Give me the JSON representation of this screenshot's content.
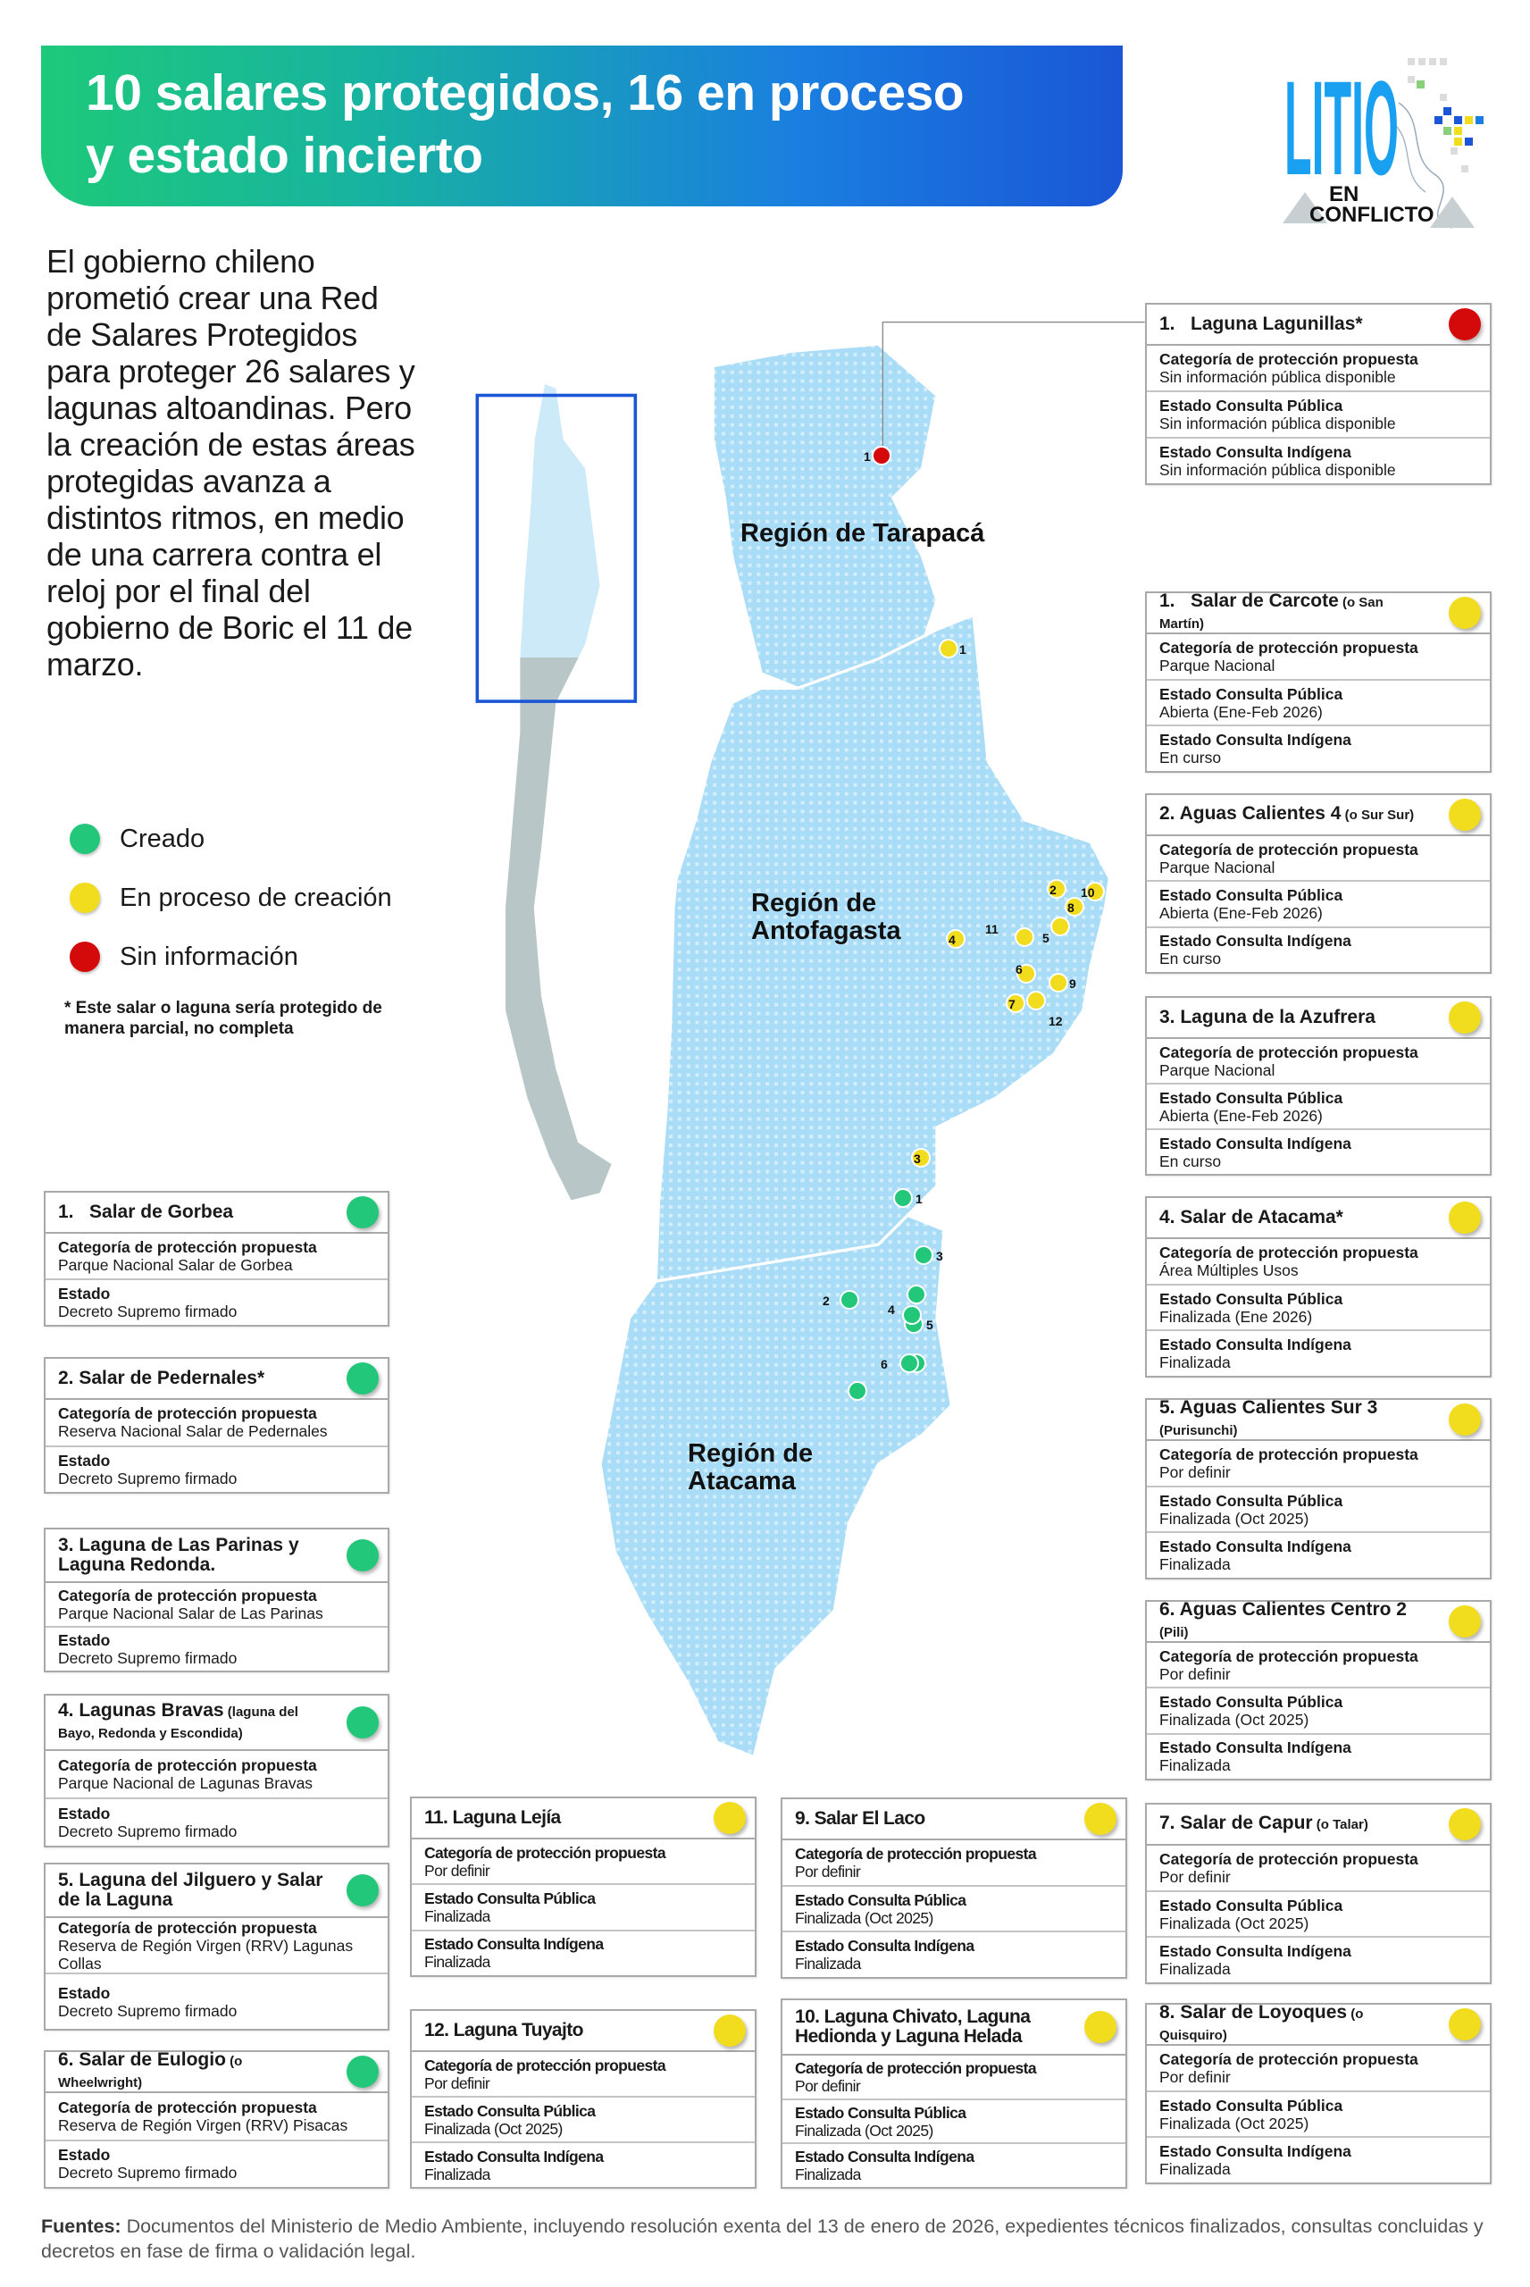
{
  "header": {
    "title_line1": "10 salares protegidos, 16 en proceso",
    "title_line2": "y estado incierto"
  },
  "logo": {
    "text_main": "LITIO",
    "text_sub1": "EN",
    "text_sub2": "CONFLICTO"
  },
  "intro": "El gobierno chileno prometió crear una Red de Salares Protegidos para proteger 26 salares y lagunas altoandinas. Pero la creación de estas áreas protegidas avanza a distintos ritmos, en medio de una carrera contra el reloj por el final del gobierno de Boric el 11 de marzo.",
  "colors": {
    "created": "#22c77a",
    "in_process": "#f2dc1e",
    "no_info": "#d40a0a",
    "map_fill": "#a9dcf6",
    "chile_box": "#1a56d6"
  },
  "legend": [
    {
      "label": "Creado",
      "status": "created"
    },
    {
      "label": "En proceso de creación",
      "status": "in_process"
    },
    {
      "label": "Sin información",
      "status": "no_info"
    }
  ],
  "note": "* Este salar o laguna sería protegido de manera parcial, no completa",
  "map": {
    "regions": {
      "tarapaca": "Región de Tarapacá",
      "antofagasta": "Región de Antofagasta",
      "atacama": "Región de Atacama"
    },
    "markers": {
      "tarapaca": [
        {
          "label": "1",
          "status": "no_info"
        }
      ],
      "antofagasta": [
        {
          "label": "1"
        },
        {
          "label": "2"
        },
        {
          "label": "3"
        },
        {
          "label": "4"
        },
        {
          "label": "5"
        },
        {
          "label": "6"
        },
        {
          "label": "7"
        },
        {
          "label": "8"
        },
        {
          "label": "9"
        },
        {
          "label": "10"
        },
        {
          "label": "11"
        },
        {
          "label": "12"
        }
      ],
      "atacama": [
        {
          "label": "1"
        },
        {
          "label": "2"
        },
        {
          "label": "3"
        },
        {
          "label": "4"
        },
        {
          "label": "5"
        },
        {
          "label": "6"
        }
      ]
    }
  },
  "cards": {
    "tarapaca": [
      {
        "num": "1.",
        "name": "Laguna Lagunillas*",
        "note": "",
        "status": "no_info",
        "rows": [
          {
            "label": "Categoría de protección propuesta",
            "value": "Sin información pública disponible"
          },
          {
            "label": "Estado Consulta Pública",
            "value": "Sin información pública disponible"
          },
          {
            "label": "Estado Consulta Indígena",
            "value": "Sin información pública disponible"
          }
        ]
      }
    ],
    "antofagasta": [
      {
        "num": "1.",
        "name": "Salar de Carcote",
        "note": "(o San Martín)",
        "status": "in_process",
        "rows": [
          {
            "label": "Categoría de protección propuesta",
            "value": "Parque Nacional"
          },
          {
            "label": "Estado Consulta Pública",
            "value": "Abierta (Ene-Feb 2026)"
          },
          {
            "label": "Estado Consulta Indígena",
            "value": "En curso"
          }
        ]
      },
      {
        "num": "2.",
        "name": "Aguas Calientes 4",
        "note": "(o Sur Sur)",
        "status": "in_process",
        "rows": [
          {
            "label": "Categoría de protección propuesta",
            "value": "Parque Nacional"
          },
          {
            "label": "Estado Consulta Pública",
            "value": "Abierta (Ene-Feb 2026)"
          },
          {
            "label": "Estado Consulta Indígena",
            "value": "En curso"
          }
        ]
      },
      {
        "num": "3.",
        "name": "Laguna de la Azufrera",
        "note": "",
        "status": "in_process",
        "rows": [
          {
            "label": "Categoría de protección propuesta",
            "value": "Parque Nacional"
          },
          {
            "label": "Estado Consulta Pública",
            "value": "Abierta (Ene-Feb 2026)"
          },
          {
            "label": "Estado Consulta Indígena",
            "value": "En curso"
          }
        ]
      },
      {
        "num": "4.",
        "name": "Salar de Atacama*",
        "note": "",
        "status": "in_process",
        "rows": [
          {
            "label": "Categoría de protección propuesta",
            "value": "Área Múltiples Usos"
          },
          {
            "label": "Estado Consulta Pública",
            "value": "Finalizada (Ene 2026)"
          },
          {
            "label": "Estado Consulta Indígena",
            "value": "Finalizada"
          }
        ]
      },
      {
        "num": "5.",
        "name": "Aguas Calientes Sur 3",
        "note": "(Purisunchi)",
        "status": "in_process",
        "rows": [
          {
            "label": "Categoría de protección propuesta",
            "value": "Por definir"
          },
          {
            "label": "Estado Consulta Pública",
            "value": "Finalizada (Oct 2025)"
          },
          {
            "label": "Estado Consulta Indígena",
            "value": "Finalizada"
          }
        ]
      },
      {
        "num": "6.",
        "name": "Aguas Calientes Centro 2",
        "note": "(Pili)",
        "status": "in_process",
        "rows": [
          {
            "label": "Categoría de protección propuesta",
            "value": "Por definir"
          },
          {
            "label": "Estado Consulta Pública",
            "value": "Finalizada (Oct 2025)"
          },
          {
            "label": "Estado Consulta Indígena",
            "value": "Finalizada"
          }
        ]
      },
      {
        "num": "7.",
        "name": "Salar de Capur",
        "note": "(o Talar)",
        "status": "in_process",
        "rows": [
          {
            "label": "Categoría de protección propuesta",
            "value": "Por definir"
          },
          {
            "label": "Estado Consulta Pública",
            "value": "Finalizada (Oct 2025)"
          },
          {
            "label": "Estado Consulta Indígena",
            "value": "Finalizada"
          }
        ]
      },
      {
        "num": "8.",
        "name": "Salar de Loyoques",
        "note": "(o Quisquiro)",
        "status": "in_process",
        "rows": [
          {
            "label": "Categoría de protección propuesta",
            "value": "Por definir"
          },
          {
            "label": "Estado Consulta Pública",
            "value": "Finalizada (Oct 2025)"
          },
          {
            "label": "Estado Consulta Indígena",
            "value": "Finalizada"
          }
        ]
      },
      {
        "num": "9.",
        "name": "Salar El Laco",
        "note": "",
        "status": "in_process",
        "rows": [
          {
            "label": "Categoría de protección propuesta",
            "value": "Por definir"
          },
          {
            "label": "Estado Consulta Pública",
            "value": "Finalizada (Oct 2025)"
          },
          {
            "label": "Estado Consulta Indígena",
            "value": "Finalizada"
          }
        ]
      },
      {
        "num": "10.",
        "name": "Laguna Chivato, Laguna Hedionda y Laguna Helada",
        "note": "",
        "status": "in_process",
        "rows": [
          {
            "label": "Categoría de protección propuesta",
            "value": "Por definir"
          },
          {
            "label": "Estado Consulta Pública",
            "value": "Finalizada (Oct 2025)"
          },
          {
            "label": "Estado Consulta Indígena",
            "value": "Finalizada"
          }
        ]
      },
      {
        "num": "11.",
        "name": "Laguna Lejía",
        "note": "",
        "status": "in_process",
        "rows": [
          {
            "label": "Categoría de protección propuesta",
            "value": "Por definir"
          },
          {
            "label": "Estado Consulta Pública",
            "value": "Finalizada"
          },
          {
            "label": "Estado Consulta Indígena",
            "value": "Finalizada"
          }
        ]
      },
      {
        "num": "12.",
        "name": "Laguna Tuyajto",
        "note": "",
        "status": "in_process",
        "rows": [
          {
            "label": "Categoría de protección propuesta",
            "value": "Por definir"
          },
          {
            "label": "Estado Consulta Pública",
            "value": "Finalizada (Oct 2025)"
          },
          {
            "label": "Estado Consulta Indígena",
            "value": "Finalizada"
          }
        ]
      }
    ],
    "atacama": [
      {
        "num": "1.",
        "name": "Salar de Gorbea",
        "note": "",
        "status": "created",
        "rows": [
          {
            "label": "Categoría de protección propuesta",
            "value": "Parque Nacional Salar de Gorbea"
          },
          {
            "label": "Estado",
            "value": "Decreto Supremo firmado"
          }
        ]
      },
      {
        "num": "2.",
        "name": "Salar de Pedernales*",
        "note": "",
        "status": "created",
        "rows": [
          {
            "label": "Categoría de protección propuesta",
            "value": "Reserva Nacional Salar de Pedernales"
          },
          {
            "label": "Estado",
            "value": "Decreto Supremo firmado"
          }
        ]
      },
      {
        "num": "3.",
        "name": "Laguna de Las Parinas y Laguna Redonda.",
        "note": "",
        "status": "created",
        "rows": [
          {
            "label": "Categoría de protección propuesta",
            "value": "Parque Nacional Salar de Las Parinas"
          },
          {
            "label": "Estado",
            "value": "Decreto Supremo firmado"
          }
        ]
      },
      {
        "num": "4.",
        "name": "Lagunas Bravas",
        "note": "(laguna del Bayo, Redonda y Escondida)",
        "status": "created",
        "rows": [
          {
            "label": "Categoría de protección propuesta",
            "value": "Parque Nacional de Lagunas Bravas"
          },
          {
            "label": "Estado",
            "value": "Decreto Supremo firmado"
          }
        ]
      },
      {
        "num": "5.",
        "name": "Laguna del Jilguero y Salar de la Laguna",
        "note": "",
        "status": "created",
        "rows": [
          {
            "label": "Categoría de protección propuesta",
            "value": "Reserva de Región Virgen (RRV) Lagunas Collas"
          },
          {
            "label": "Estado",
            "value": "Decreto Supremo firmado"
          }
        ]
      },
      {
        "num": "6.",
        "name": "Salar de Eulogio",
        "note": "(o Wheelwright)",
        "status": "created",
        "rows": [
          {
            "label": "Categoría de protección propuesta",
            "value": "Reserva de Región Virgen (RRV) Pisacas"
          },
          {
            "label": "Estado",
            "value": "Decreto Supremo firmado"
          }
        ]
      }
    ]
  },
  "footer": {
    "label": "Fuentes:",
    "text": "Documentos del Ministerio de Medio Ambiente, incluyendo resolución exenta del 13 de enero de 2026, expedientes técnicos finalizados, consultas concluidas y decretos en fase de firma o validación legal."
  }
}
